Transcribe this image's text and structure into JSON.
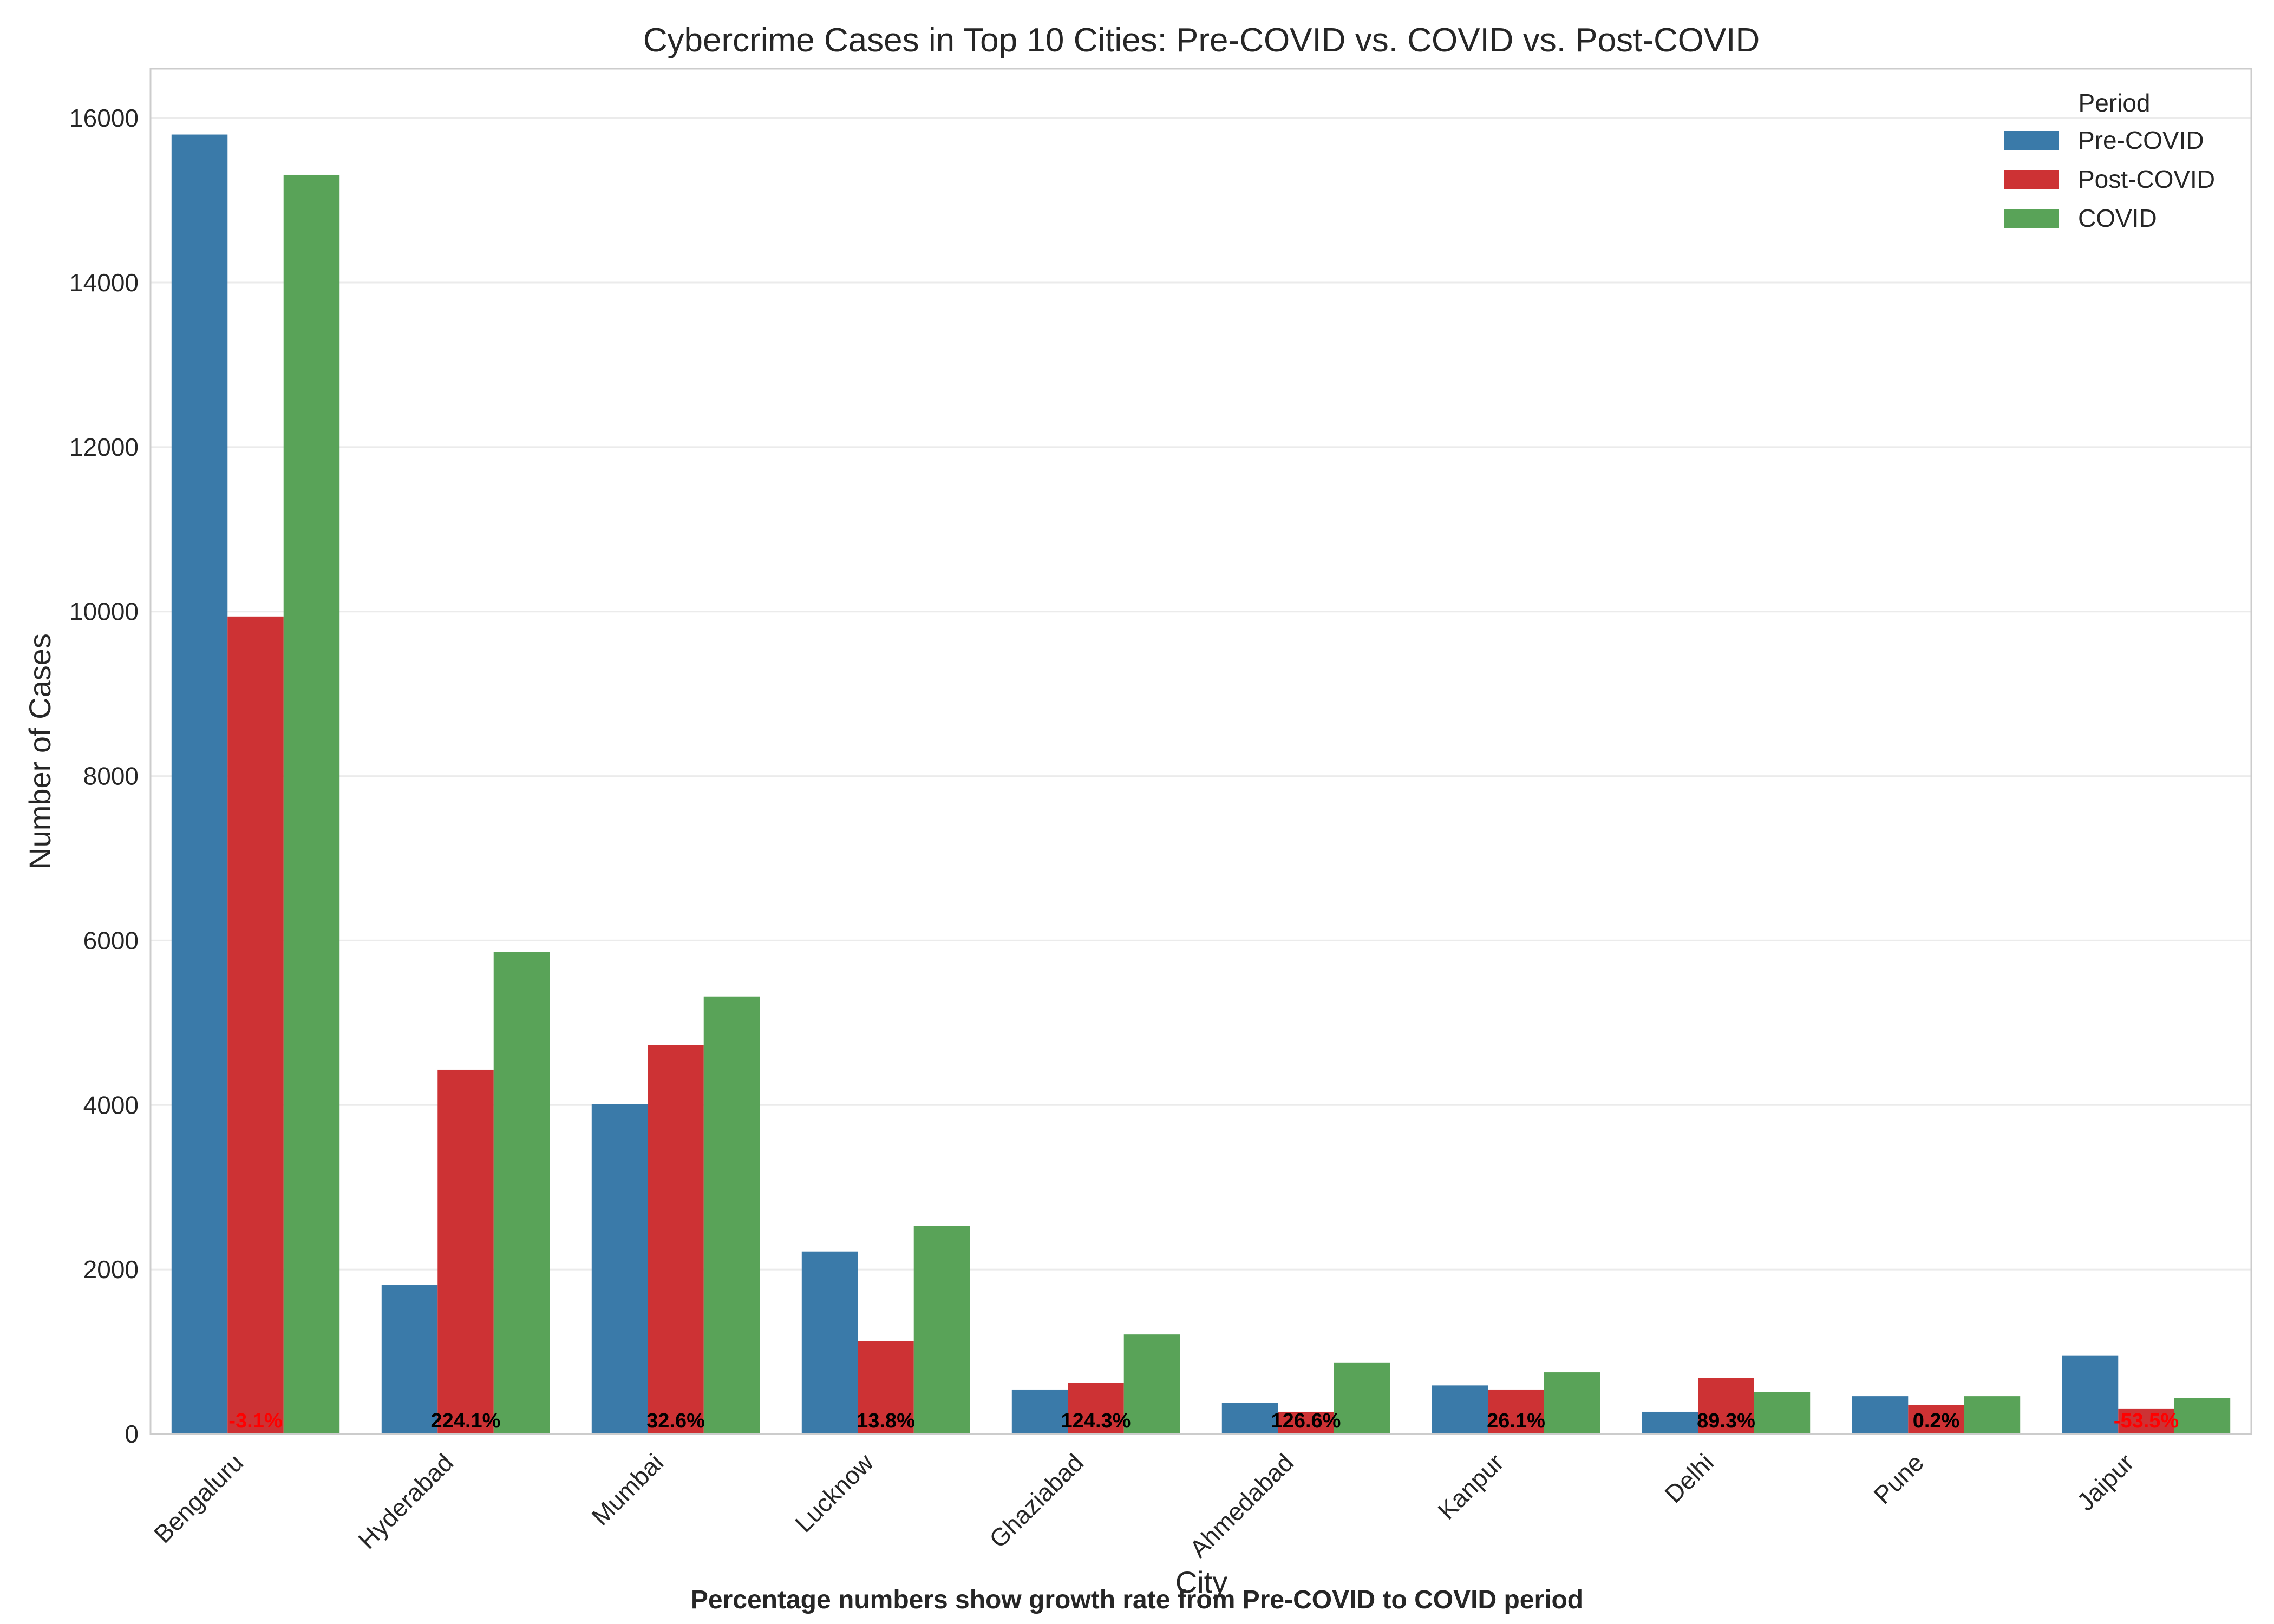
{
  "chart_data": {
    "type": "bar",
    "title": "Cybercrime Cases in Top 10 Cities: Pre-COVID vs. COVID vs. Post-COVID",
    "xlabel": "City",
    "ylabel": "Number of Cases",
    "ylim": [
      0,
      16600
    ],
    "yticks": [
      0,
      2000,
      4000,
      6000,
      8000,
      10000,
      12000,
      14000,
      16000
    ],
    "grid": true,
    "legend": {
      "title": "Period",
      "placement": "top-right"
    },
    "categories": [
      "Bengaluru",
      "Hyderabad",
      "Mumbai",
      "Lucknow",
      "Ghaziabad",
      "Ahmedabad",
      "Kanpur",
      "Delhi",
      "Pune",
      "Jaipur"
    ],
    "series": [
      {
        "name": "Pre-COVID",
        "color": "#3a7aa9",
        "values": [
          15800,
          1810,
          4010,
          2220,
          540,
          380,
          590,
          270,
          460,
          950
        ]
      },
      {
        "name": "Post-COVID",
        "color": "#cd3234",
        "values": [
          9940,
          4430,
          4730,
          1130,
          620,
          270,
          540,
          680,
          350,
          310
        ]
      },
      {
        "name": "COVID",
        "color": "#59a358",
        "values": [
          15310,
          5860,
          5320,
          2530,
          1210,
          870,
          750,
          510,
          460,
          440
        ]
      }
    ],
    "annotations": [
      {
        "text": "-3.1%",
        "color": "#ff0000"
      },
      {
        "text": "224.1%",
        "color": "#000000"
      },
      {
        "text": "32.6%",
        "color": "#000000"
      },
      {
        "text": "13.8%",
        "color": "#000000"
      },
      {
        "text": "124.3%",
        "color": "#000000"
      },
      {
        "text": "126.6%",
        "color": "#000000"
      },
      {
        "text": "26.1%",
        "color": "#000000"
      },
      {
        "text": "89.3%",
        "color": "#000000"
      },
      {
        "text": "0.2%",
        "color": "#000000"
      },
      {
        "text": "-53.5%",
        "color": "#ff0000"
      }
    ],
    "footnote": "Percentage numbers show growth rate from Pre-COVID to COVID period"
  }
}
